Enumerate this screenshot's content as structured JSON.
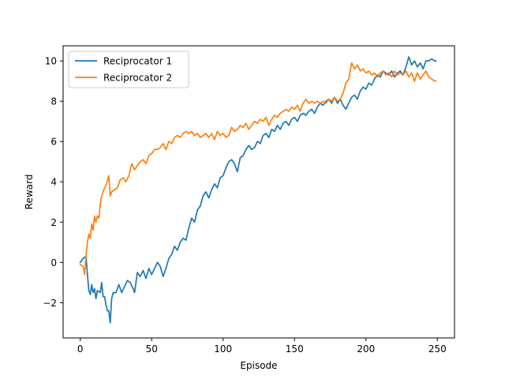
{
  "chart_data": {
    "type": "line",
    "title": "",
    "xlabel": "Episode",
    "ylabel": "Reward",
    "xlim": [
      -12,
      262
    ],
    "ylim": [
      -3.75,
      10.75
    ],
    "xticks": [
      0,
      50,
      100,
      150,
      200,
      250
    ],
    "yticks": [
      -2,
      0,
      2,
      4,
      6,
      8,
      10
    ],
    "xtick_labels": [
      "0",
      "50",
      "100",
      "150",
      "200",
      "250"
    ],
    "ytick_labels": [
      "−2",
      "0",
      "2",
      "4",
      "6",
      "8",
      "10"
    ],
    "grid": false,
    "legend_position": "upper-left",
    "series": [
      {
        "name": "Reciprocator 1",
        "color": "#1f77b4",
        "points": [
          [
            0,
            0
          ],
          [
            2,
            0.2
          ],
          [
            4,
            0.3
          ],
          [
            5,
            -0.6
          ],
          [
            6,
            -1.4
          ],
          [
            7,
            -1.6
          ],
          [
            8,
            -1.1
          ],
          [
            9,
            -1.5
          ],
          [
            10,
            -1.3
          ],
          [
            11,
            -1.8
          ],
          [
            12,
            -1.4
          ],
          [
            14,
            -1.5
          ],
          [
            15,
            -1.0
          ],
          [
            16,
            -1.7
          ],
          [
            17,
            -1.7
          ],
          [
            18,
            -2.1
          ],
          [
            19,
            -2.4
          ],
          [
            20,
            -2.4
          ],
          [
            21,
            -3.0
          ],
          [
            22,
            -1.8
          ],
          [
            23,
            -1.5
          ],
          [
            25,
            -1.5
          ],
          [
            27,
            -1.1
          ],
          [
            29,
            -1.5
          ],
          [
            31,
            -1.2
          ],
          [
            33,
            -0.9
          ],
          [
            35,
            -1.0
          ],
          [
            37,
            -1.3
          ],
          [
            38,
            -1.5
          ],
          [
            40,
            -0.5
          ],
          [
            42,
            -0.7
          ],
          [
            44,
            -0.4
          ],
          [
            46,
            -0.8
          ],
          [
            48,
            -0.3
          ],
          [
            50,
            -0.6
          ],
          [
            52,
            -0.3
          ],
          [
            54,
            0.0
          ],
          [
            56,
            -0.2
          ],
          [
            58,
            -0.7
          ],
          [
            60,
            -0.3
          ],
          [
            62,
            0.2
          ],
          [
            64,
            0.4
          ],
          [
            66,
            0.8
          ],
          [
            68,
            0.6
          ],
          [
            70,
            1.0
          ],
          [
            72,
            1.2
          ],
          [
            74,
            1.1
          ],
          [
            76,
            1.7
          ],
          [
            78,
            2.2
          ],
          [
            80,
            2.0
          ],
          [
            82,
            2.6
          ],
          [
            84,
            2.8
          ],
          [
            86,
            3.3
          ],
          [
            88,
            3.5
          ],
          [
            90,
            3.2
          ],
          [
            92,
            3.6
          ],
          [
            94,
            3.9
          ],
          [
            96,
            3.7
          ],
          [
            98,
            4.2
          ],
          [
            100,
            4.3
          ],
          [
            102,
            4.7
          ],
          [
            104,
            5.0
          ],
          [
            106,
            5.1
          ],
          [
            108,
            4.9
          ],
          [
            110,
            4.5
          ],
          [
            112,
            5.2
          ],
          [
            114,
            5.3
          ],
          [
            116,
            5.6
          ],
          [
            118,
            5.8
          ],
          [
            120,
            5.6
          ],
          [
            122,
            5.7
          ],
          [
            124,
            6.0
          ],
          [
            126,
            5.9
          ],
          [
            128,
            6.3
          ],
          [
            130,
            6.4
          ],
          [
            132,
            6.2
          ],
          [
            134,
            6.6
          ],
          [
            136,
            6.5
          ],
          [
            138,
            6.8
          ],
          [
            140,
            6.6
          ],
          [
            142,
            6.9
          ],
          [
            144,
            7.0
          ],
          [
            146,
            6.8
          ],
          [
            148,
            7.1
          ],
          [
            150,
            7.2
          ],
          [
            152,
            7.0
          ],
          [
            154,
            7.3
          ],
          [
            156,
            7.4
          ],
          [
            158,
            7.3
          ],
          [
            160,
            7.5
          ],
          [
            162,
            7.6
          ],
          [
            164,
            7.4
          ],
          [
            166,
            7.7
          ],
          [
            168,
            7.9
          ],
          [
            170,
            7.8
          ],
          [
            172,
            8.0
          ],
          [
            174,
            8.1
          ],
          [
            176,
            7.9
          ],
          [
            178,
            8.2
          ],
          [
            180,
            7.9
          ],
          [
            182,
            8.1
          ],
          [
            184,
            7.8
          ],
          [
            186,
            7.6
          ],
          [
            188,
            7.9
          ],
          [
            190,
            8.2
          ],
          [
            192,
            8.3
          ],
          [
            194,
            8.1
          ],
          [
            196,
            8.5
          ],
          [
            198,
            8.7
          ],
          [
            200,
            8.6
          ],
          [
            202,
            8.9
          ],
          [
            204,
            8.8
          ],
          [
            206,
            9.1
          ],
          [
            208,
            9.3
          ],
          [
            210,
            9.2
          ],
          [
            212,
            9.5
          ],
          [
            214,
            9.4
          ],
          [
            216,
            9.3
          ],
          [
            218,
            9.5
          ],
          [
            220,
            9.2
          ],
          [
            222,
            9.4
          ],
          [
            224,
            9.5
          ],
          [
            226,
            9.3
          ],
          [
            228,
            9.7
          ],
          [
            230,
            10.2
          ],
          [
            232,
            9.8
          ],
          [
            234,
            10.0
          ],
          [
            236,
            9.7
          ],
          [
            238,
            9.9
          ],
          [
            240,
            9.6
          ],
          [
            242,
            10.0
          ],
          [
            244,
            10.0
          ],
          [
            246,
            10.1
          ],
          [
            248,
            10.0
          ],
          [
            249,
            10.0
          ]
        ]
      },
      {
        "name": "Reciprocator 2",
        "color": "#ff7f0e",
        "points": [
          [
            0,
            -0.1
          ],
          [
            2,
            -0.2
          ],
          [
            3,
            -0.6
          ],
          [
            4,
            0.3
          ],
          [
            5,
            1.0
          ],
          [
            6,
            1.4
          ],
          [
            7,
            1.2
          ],
          [
            8,
            1.9
          ],
          [
            9,
            1.6
          ],
          [
            10,
            2.3
          ],
          [
            11,
            2.0
          ],
          [
            12,
            2.3
          ],
          [
            13,
            2.2
          ],
          [
            14,
            2.9
          ],
          [
            15,
            3.3
          ],
          [
            16,
            3.5
          ],
          [
            17,
            3.7
          ],
          [
            18,
            3.8
          ],
          [
            20,
            4.3
          ],
          [
            21,
            3.3
          ],
          [
            22,
            3.5
          ],
          [
            24,
            3.6
          ],
          [
            26,
            3.7
          ],
          [
            28,
            4.1
          ],
          [
            30,
            4.2
          ],
          [
            32,
            4.0
          ],
          [
            34,
            4.3
          ],
          [
            36,
            4.9
          ],
          [
            38,
            4.6
          ],
          [
            40,
            4.8
          ],
          [
            42,
            5.0
          ],
          [
            44,
            5.1
          ],
          [
            46,
            4.9
          ],
          [
            48,
            5.3
          ],
          [
            50,
            5.4
          ],
          [
            52,
            5.6
          ],
          [
            54,
            5.6
          ],
          [
            56,
            5.7
          ],
          [
            58,
            5.9
          ],
          [
            60,
            5.6
          ],
          [
            62,
            6.0
          ],
          [
            64,
            5.9
          ],
          [
            66,
            6.2
          ],
          [
            68,
            6.3
          ],
          [
            70,
            6.2
          ],
          [
            72,
            6.4
          ],
          [
            74,
            6.5
          ],
          [
            76,
            6.4
          ],
          [
            78,
            6.5
          ],
          [
            80,
            6.3
          ],
          [
            82,
            6.4
          ],
          [
            84,
            6.2
          ],
          [
            86,
            6.3
          ],
          [
            88,
            6.4
          ],
          [
            90,
            6.2
          ],
          [
            92,
            6.4
          ],
          [
            94,
            6.1
          ],
          [
            96,
            6.5
          ],
          [
            98,
            6.3
          ],
          [
            100,
            6.4
          ],
          [
            102,
            6.2
          ],
          [
            104,
            6.3
          ],
          [
            106,
            6.7
          ],
          [
            108,
            6.5
          ],
          [
            110,
            6.6
          ],
          [
            112,
            6.8
          ],
          [
            114,
            6.7
          ],
          [
            116,
            6.9
          ],
          [
            118,
            6.6
          ],
          [
            120,
            6.8
          ],
          [
            122,
            7.0
          ],
          [
            124,
            6.9
          ],
          [
            126,
            7.1
          ],
          [
            128,
            7.0
          ],
          [
            130,
            7.2
          ],
          [
            132,
            6.8
          ],
          [
            134,
            7.1
          ],
          [
            136,
            7.3
          ],
          [
            138,
            7.2
          ],
          [
            140,
            7.4
          ],
          [
            142,
            7.5
          ],
          [
            144,
            7.6
          ],
          [
            146,
            7.5
          ],
          [
            148,
            7.7
          ],
          [
            150,
            7.6
          ],
          [
            152,
            7.8
          ],
          [
            154,
            7.5
          ],
          [
            156,
            7.9
          ],
          [
            158,
            8.1
          ],
          [
            160,
            7.9
          ],
          [
            162,
            8.0
          ],
          [
            164,
            7.9
          ],
          [
            166,
            8.0
          ],
          [
            168,
            7.9
          ],
          [
            170,
            8.0
          ],
          [
            172,
            7.9
          ],
          [
            174,
            8.1
          ],
          [
            176,
            8.0
          ],
          [
            178,
            8.2
          ],
          [
            180,
            8.0
          ],
          [
            182,
            8.1
          ],
          [
            184,
            8.4
          ],
          [
            186,
            8.9
          ],
          [
            188,
            9.1
          ],
          [
            190,
            9.9
          ],
          [
            192,
            9.6
          ],
          [
            194,
            9.8
          ],
          [
            196,
            9.5
          ],
          [
            198,
            9.6
          ],
          [
            200,
            9.4
          ],
          [
            202,
            9.5
          ],
          [
            204,
            9.3
          ],
          [
            206,
            9.4
          ],
          [
            208,
            9.2
          ],
          [
            210,
            9.4
          ],
          [
            212,
            9.5
          ],
          [
            214,
            9.3
          ],
          [
            216,
            9.4
          ],
          [
            218,
            9.2
          ],
          [
            220,
            9.5
          ],
          [
            222,
            9.3
          ],
          [
            224,
            9.4
          ],
          [
            226,
            9.3
          ],
          [
            228,
            9.5
          ],
          [
            230,
            9.2
          ],
          [
            232,
            9.4
          ],
          [
            234,
            9.0
          ],
          [
            236,
            9.4
          ],
          [
            238,
            9.1
          ],
          [
            240,
            9.3
          ],
          [
            242,
            9.5
          ],
          [
            244,
            9.2
          ],
          [
            246,
            9.1
          ],
          [
            248,
            9.0
          ],
          [
            249,
            9.0
          ]
        ]
      }
    ]
  }
}
